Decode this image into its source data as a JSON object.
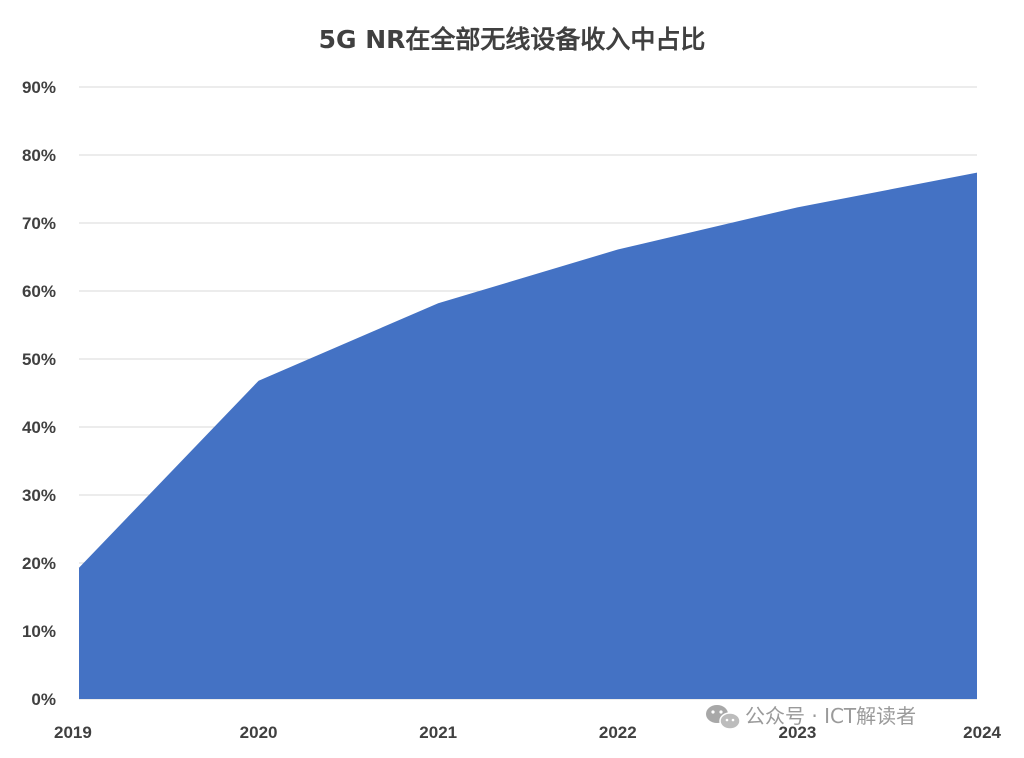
{
  "chart_data": {
    "type": "area",
    "title": "5G NR在全部无线设备收入中占比",
    "xlabel": "",
    "ylabel": "",
    "categories": [
      "2019",
      "2020",
      "2021",
      "2022",
      "2023",
      "2024"
    ],
    "series": [
      {
        "values": [
          19.3,
          46.8,
          58.2,
          66.1,
          72.3,
          77.4
        ]
      }
    ],
    "ylim": [
      0,
      90
    ],
    "yticks": [
      "0%",
      "10%",
      "20%",
      "30%",
      "40%",
      "50%",
      "60%",
      "70%",
      "80%",
      "90%"
    ],
    "ytick_values": [
      0,
      10,
      20,
      30,
      40,
      50,
      60,
      70,
      80,
      90
    ],
    "grid": true,
    "legend": "none",
    "color": "#4472c4"
  },
  "watermark": {
    "text": "公众号 · ICT解读者",
    "icon": "wechat-icon"
  }
}
